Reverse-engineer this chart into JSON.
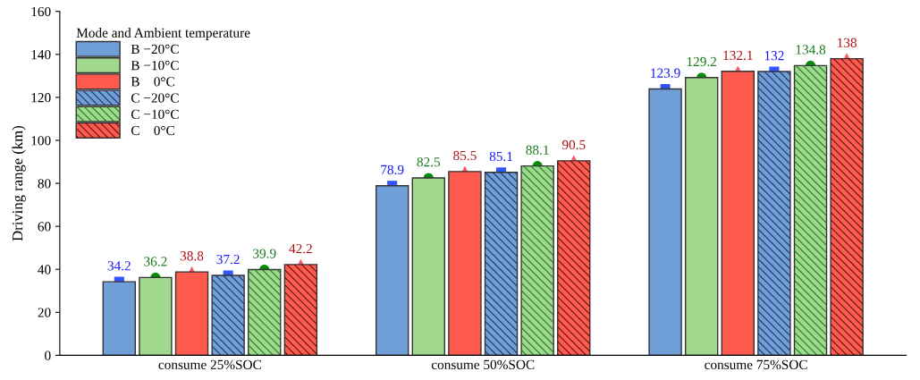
{
  "chart_data": {
    "type": "bar",
    "ylabel": "Driving range (km)",
    "legend_title": "Mode and Ambient temperature",
    "categories": [
      "consume 25%SOC",
      "consume 50%SOC",
      "consume 75%SOC"
    ],
    "series": [
      {
        "name": "B −20°C",
        "color": "#6f9fd6",
        "marker": "square",
        "values": [
          34.2,
          78.9,
          123.9
        ]
      },
      {
        "name": "B −10°C",
        "color": "#a0d88e",
        "marker": "circle",
        "values": [
          36.2,
          82.5,
          129.2
        ]
      },
      {
        "name": "B    0°C",
        "color": "#ff5a4e",
        "marker": "triangle",
        "values": [
          38.8,
          85.5,
          132.1
        ]
      },
      {
        "name": "C −20°C",
        "color": "#6f9fd6",
        "marker": "square",
        "values": [
          37.2,
          85.1,
          132
        ]
      },
      {
        "name": "C −10°C",
        "color": "#a0d88e",
        "marker": "circle",
        "values": [
          39.9,
          88.1,
          134.8
        ]
      },
      {
        "name": "C    0°C",
        "color": "#ff5a4e",
        "marker": "triangle",
        "values": [
          42.2,
          90.5,
          138
        ]
      }
    ],
    "ylim": [
      0,
      160
    ],
    "yticks": [
      0,
      20,
      40,
      60,
      80,
      100,
      120,
      140,
      160
    ],
    "data_labels": true,
    "legend": "top left",
    "grid": false
  }
}
